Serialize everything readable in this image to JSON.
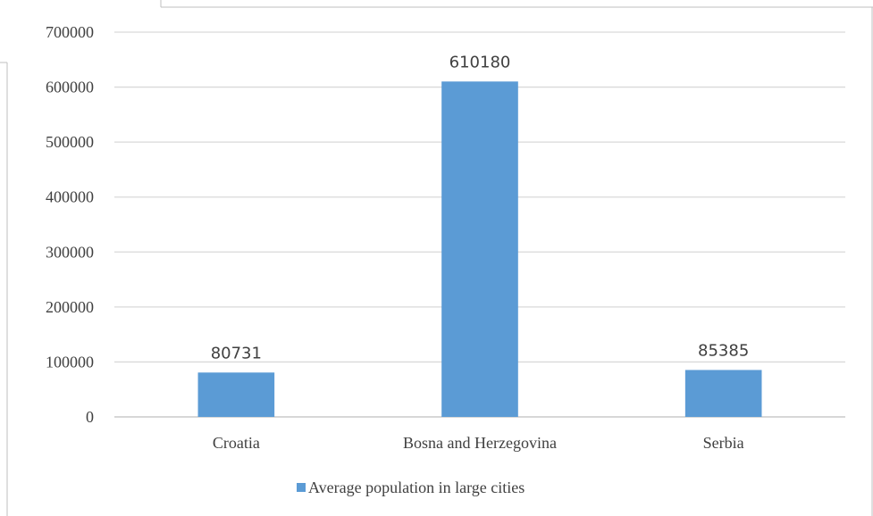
{
  "chart_data": {
    "type": "bar",
    "categories": [
      "Croatia",
      "Bosna and Herzegovina",
      "Serbia"
    ],
    "series": [
      {
        "name": "Average population in large cities",
        "values": [
          80731,
          610180,
          85385
        ],
        "color": "#5b9bd5"
      }
    ],
    "data_labels": [
      "80731",
      "610180",
      "85385"
    ],
    "y_ticks": [
      0,
      100000,
      200000,
      300000,
      400000,
      500000,
      600000,
      700000
    ],
    "y_tick_labels": [
      "0",
      "100000",
      "200000",
      "300000",
      "400000",
      "500000",
      "600000",
      "700000"
    ],
    "ylim": [
      0,
      700000
    ],
    "grid": true,
    "legend": "bottom",
    "gridline_color": "#d9d9d9",
    "axis_color": "#bfbfbf"
  }
}
